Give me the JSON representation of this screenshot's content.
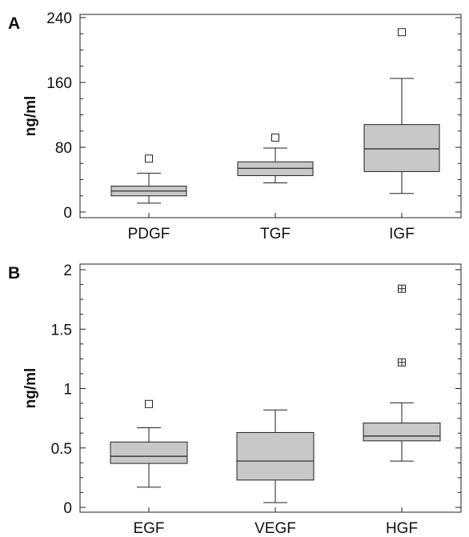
{
  "chart_data": [
    {
      "type": "box",
      "panel_label": "A",
      "ylabel": "ng/ml",
      "ylim": [
        0,
        240
      ],
      "yticks": [
        0,
        80,
        160,
        240
      ],
      "y_tick_labels": [
        "0",
        "80",
        "160",
        "240"
      ],
      "categories": [
        "PDGF",
        "TGF",
        "IGF"
      ],
      "boxes": [
        {
          "category": "PDGF",
          "whisker_low": 11,
          "q1": 20,
          "median": 26,
          "q3": 32,
          "whisker_high": 48,
          "outliers": [
            {
              "value": 66,
              "marker": "square"
            }
          ]
        },
        {
          "category": "TGF",
          "whisker_low": 36,
          "q1": 45,
          "median": 54,
          "q3": 62,
          "whisker_high": 79,
          "outliers": [
            {
              "value": 92,
              "marker": "square"
            }
          ]
        },
        {
          "category": "IGF",
          "whisker_low": 23,
          "q1": 50,
          "median": 78,
          "q3": 108,
          "whisker_high": 165,
          "outliers": [
            {
              "value": 222,
              "marker": "square"
            }
          ]
        }
      ],
      "box_fill": "#c8c8c8"
    },
    {
      "type": "box",
      "panel_label": "B",
      "ylabel": "ng/ml",
      "ylim": [
        0,
        2
      ],
      "yticks": [
        0,
        0.5,
        1,
        1.5,
        2
      ],
      "y_tick_labels": [
        "0",
        "0.5",
        "1",
        "1.5",
        "2"
      ],
      "categories": [
        "EGF",
        "VEGF",
        "HGF"
      ],
      "boxes": [
        {
          "category": "EGF",
          "whisker_low": 0.17,
          "q1": 0.37,
          "median": 0.43,
          "q3": 0.55,
          "whisker_high": 0.67,
          "outliers": [
            {
              "value": 0.87,
              "marker": "square"
            }
          ]
        },
        {
          "category": "VEGF",
          "whisker_low": 0.04,
          "q1": 0.23,
          "median": 0.39,
          "q3": 0.63,
          "whisker_high": 0.82,
          "outliers": []
        },
        {
          "category": "HGF",
          "whisker_low": 0.39,
          "q1": 0.56,
          "median": 0.6,
          "q3": 0.71,
          "whisker_high": 0.88,
          "outliers": [
            {
              "value": 1.22,
              "marker": "crossed-square"
            },
            {
              "value": 1.84,
              "marker": "crossed-square"
            }
          ]
        }
      ],
      "box_fill": "#c8c8c8"
    }
  ]
}
